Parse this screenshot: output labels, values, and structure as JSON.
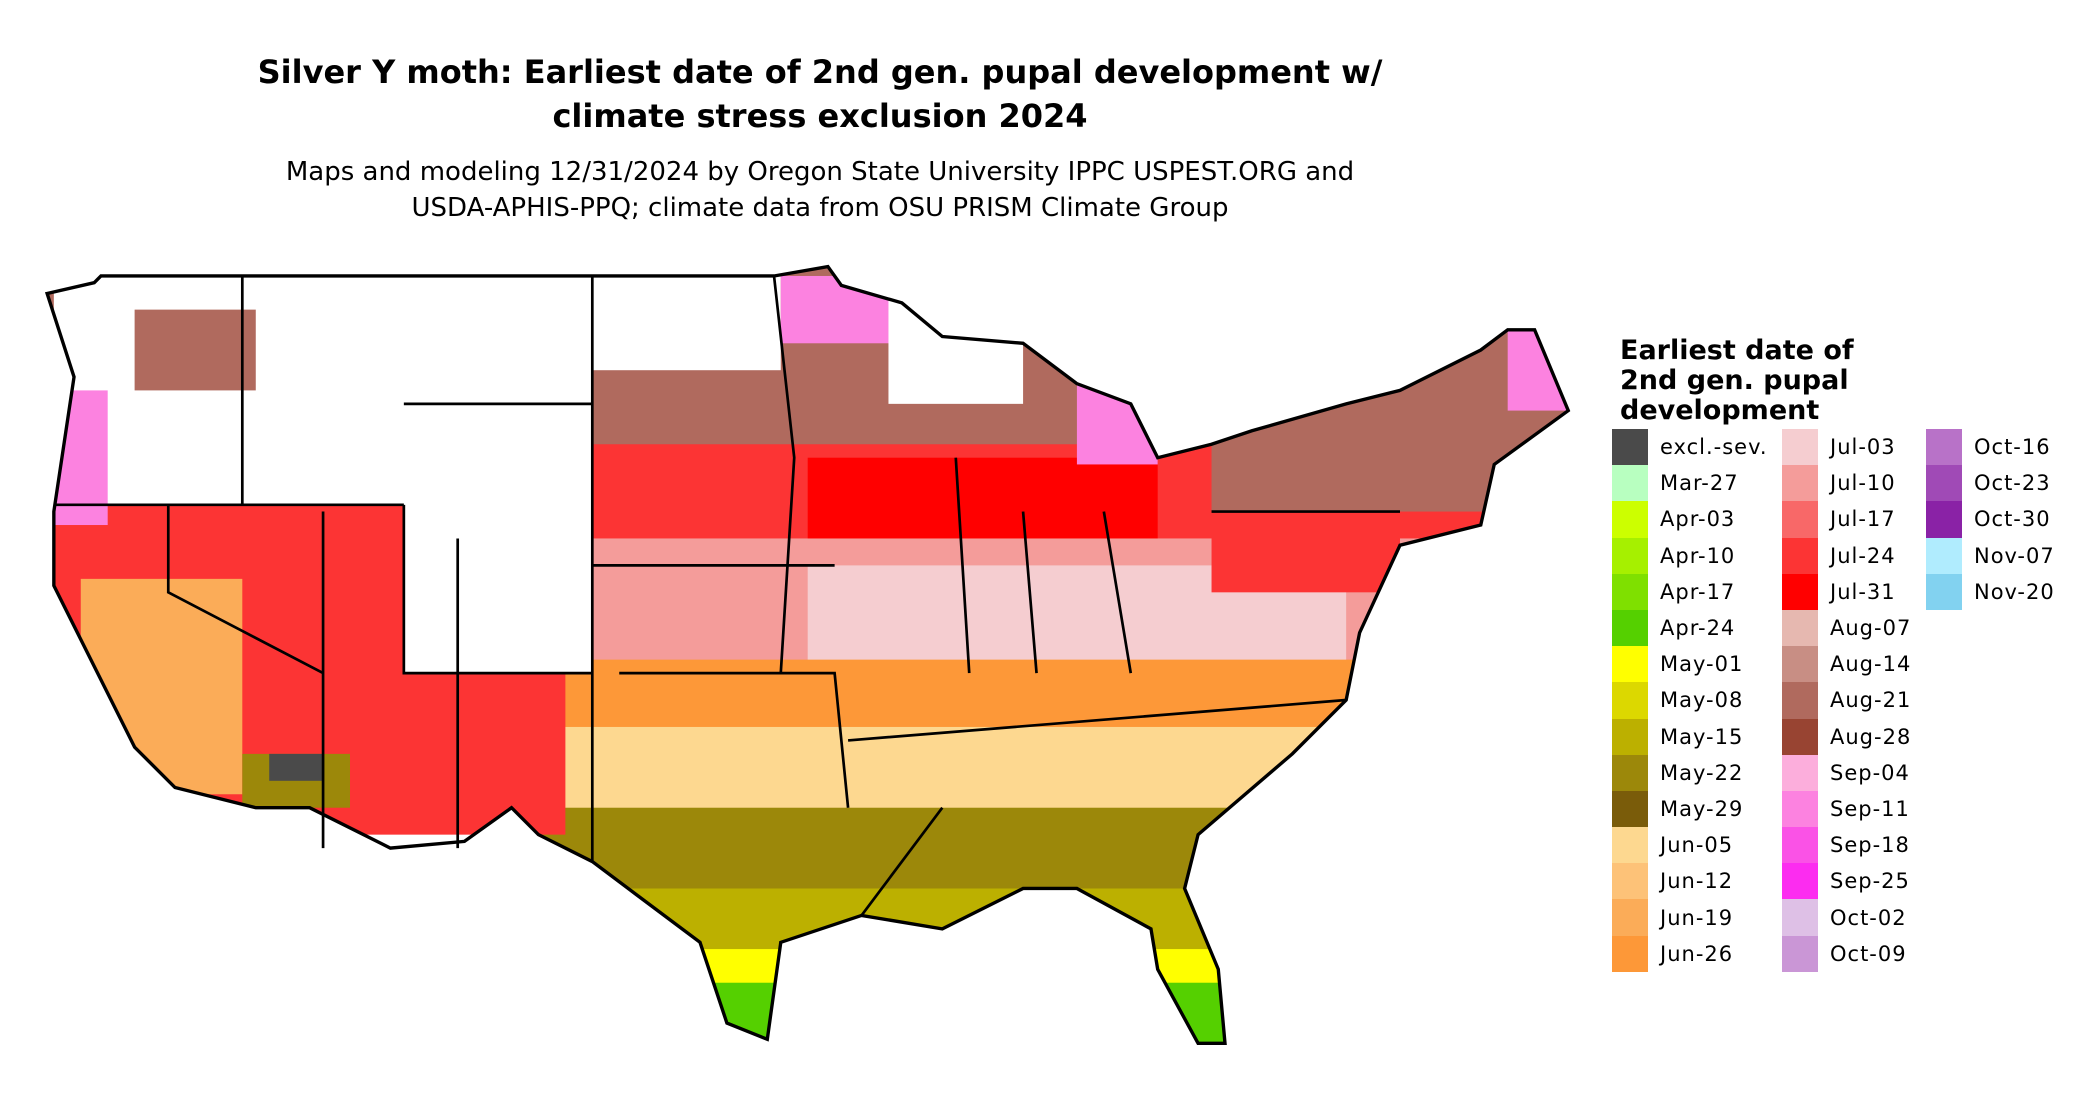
{
  "title": {
    "line1": "Silver Y moth: Earliest date of 2nd gen. pupal development w/",
    "line2": "climate stress exclusion 2024"
  },
  "subtitle": {
    "line1": "Maps and modeling 12/31/2024 by Oregon State University IPPC USPEST.ORG and",
    "line2": "USDA-APHIS-PPQ; climate data from OSU PRISM Climate Group"
  },
  "legend": {
    "title": "Earliest date of 2nd gen. pupal development",
    "columns": [
      [
        {
          "label": "excl.-sev.",
          "color": "#4a4a4a"
        },
        {
          "label": "Mar-27",
          "color": "#b8ffc0"
        },
        {
          "label": "Apr-03",
          "color": "#ccff00"
        },
        {
          "label": "Apr-10",
          "color": "#a6f000"
        },
        {
          "label": "Apr-17",
          "color": "#7fe000"
        },
        {
          "label": "Apr-24",
          "color": "#55d000"
        },
        {
          "label": "May-01",
          "color": "#ffff00"
        },
        {
          "label": "May-08",
          "color": "#dcd800"
        },
        {
          "label": "May-15",
          "color": "#bcb000"
        },
        {
          "label": "May-22",
          "color": "#9c880a"
        },
        {
          "label": "May-29",
          "color": "#7a5c0a"
        },
        {
          "label": "Jun-05",
          "color": "#fdd890"
        },
        {
          "label": "Jun-12",
          "color": "#fdc278"
        },
        {
          "label": "Jun-19",
          "color": "#fbac58"
        },
        {
          "label": "Jun-26",
          "color": "#fd9838"
        }
      ],
      [
        {
          "label": "Jul-03",
          "color": "#f5cdd0"
        },
        {
          "label": "Jul-10",
          "color": "#f49c9a"
        },
        {
          "label": "Jul-17",
          "color": "#f86868"
        },
        {
          "label": "Jul-24",
          "color": "#fc3434"
        },
        {
          "label": "Jul-31",
          "color": "#ff0000"
        },
        {
          "label": "Aug-07",
          "color": "#e6b8b0"
        },
        {
          "label": "Aug-14",
          "color": "#c88e84"
        },
        {
          "label": "Aug-21",
          "color": "#b06a5e"
        },
        {
          "label": "Aug-28",
          "color": "#984432"
        },
        {
          "label": "Sep-04",
          "color": "#fcaedc"
        },
        {
          "label": "Sep-11",
          "color": "#fc82e0"
        },
        {
          "label": "Sep-18",
          "color": "#fa52e6"
        },
        {
          "label": "Sep-25",
          "color": "#fc2cf0"
        },
        {
          "label": "Oct-02",
          "color": "#dec0e6"
        },
        {
          "label": "Oct-09",
          "color": "#ca96d6"
        }
      ],
      [
        {
          "label": "Oct-16",
          "color": "#b872c8"
        },
        {
          "label": "Oct-23",
          "color": "#a04ab6"
        },
        {
          "label": "Oct-30",
          "color": "#8a22a6"
        },
        {
          "label": "Nov-07",
          "color": "#b0ecfe"
        },
        {
          "label": "Nov-20",
          "color": "#82d2f0"
        }
      ]
    ]
  }
}
